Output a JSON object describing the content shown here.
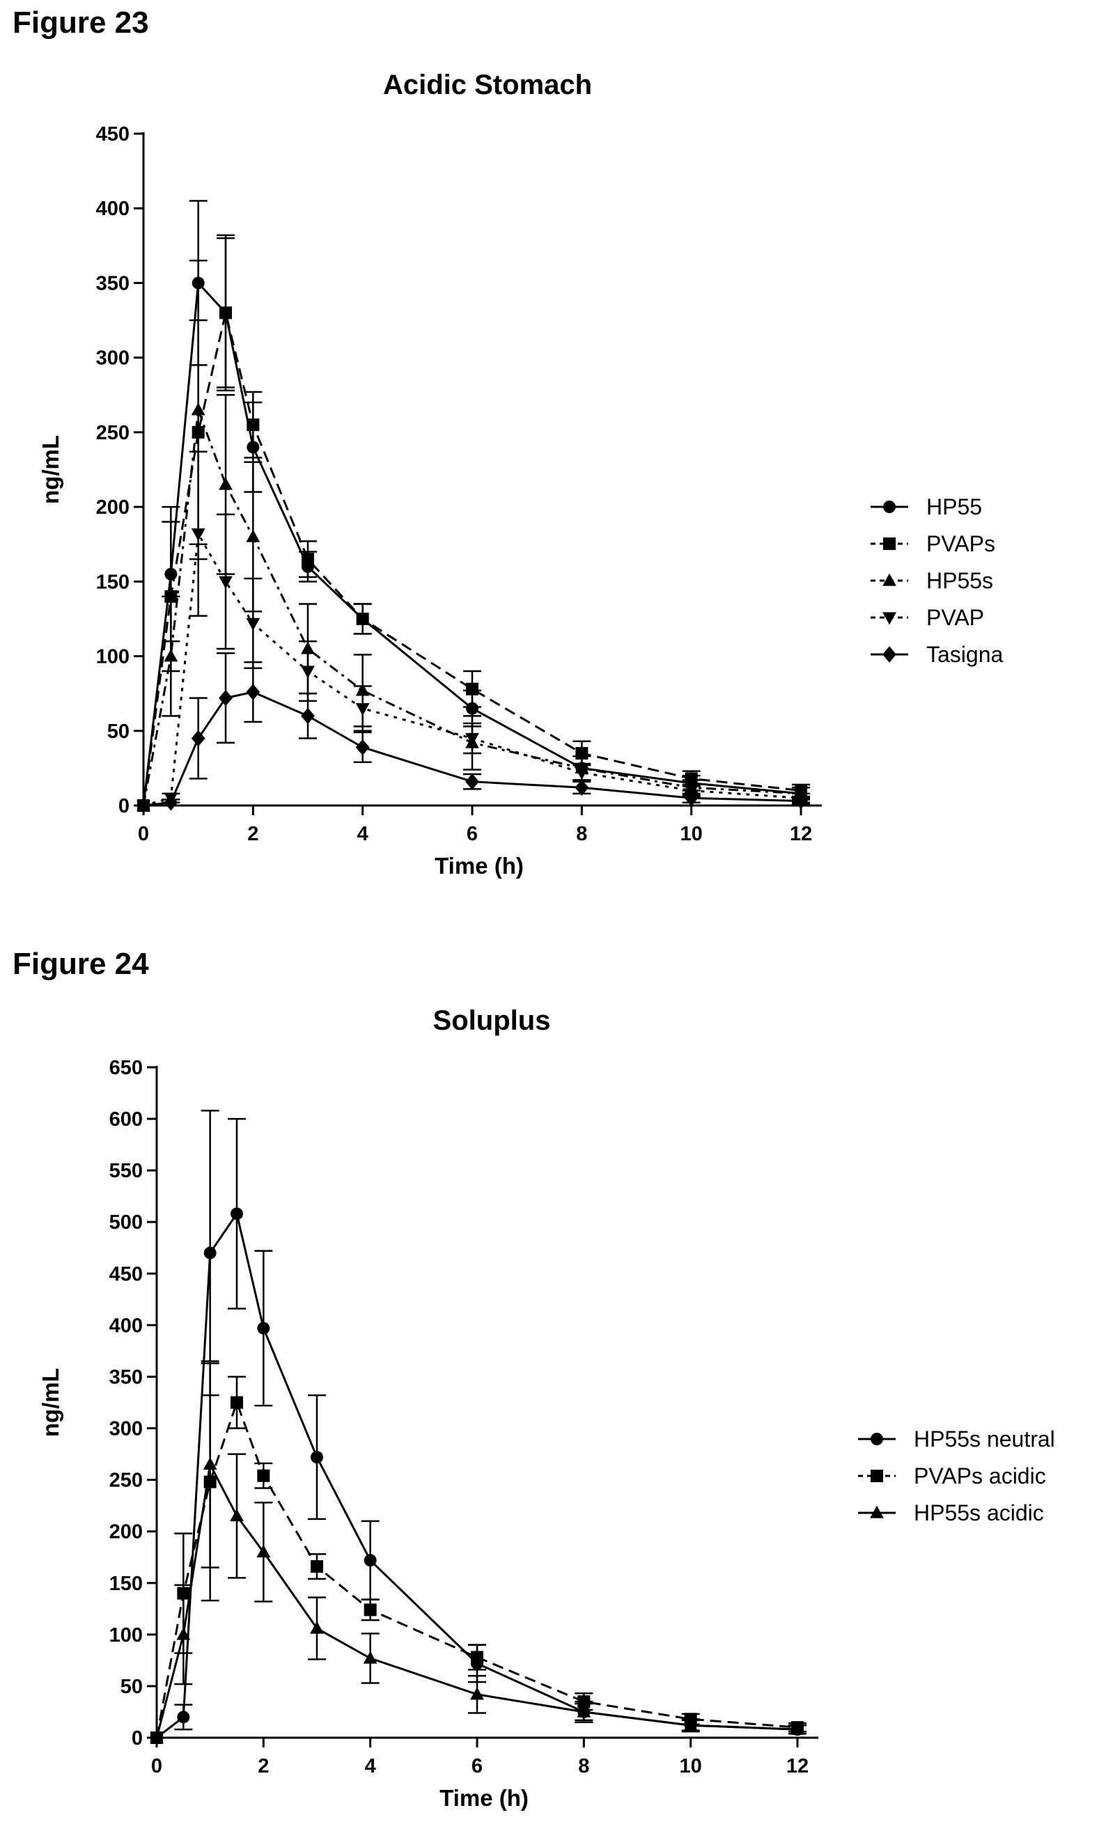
{
  "figures": [
    {
      "label": "Figure 23"
    },
    {
      "label": "Figure 24"
    }
  ],
  "chart_data": [
    {
      "type": "line",
      "title": "Acidic Stomach",
      "xlabel": "Time (h)",
      "ylabel": "ng/mL",
      "xlim": [
        0,
        12
      ],
      "ylim": [
        0,
        450
      ],
      "xticks": [
        0,
        2,
        4,
        6,
        8,
        10,
        12
      ],
      "yticks": [
        0,
        50,
        100,
        150,
        200,
        250,
        300,
        350,
        400,
        450
      ],
      "legend": "right",
      "grid": false,
      "x": [
        0,
        0.5,
        1,
        1.5,
        2,
        3,
        4,
        6,
        8,
        10,
        12
      ],
      "series": [
        {
          "name": "HP55",
          "marker": "circle",
          "dash": "solid",
          "values": [
            0,
            155,
            350,
            330,
            240,
            160,
            125,
            65,
            25,
            15,
            8
          ],
          "errors": [
            0,
            45,
            55,
            50,
            30,
            10,
            10,
            12,
            8,
            5,
            4
          ]
        },
        {
          "name": "PVAPs",
          "marker": "square",
          "dash": "dashed",
          "values": [
            0,
            140,
            250,
            330,
            255,
            165,
            125,
            78,
            35,
            18,
            10
          ],
          "errors": [
            0,
            50,
            75,
            52,
            22,
            12,
            10,
            12,
            8,
            5,
            4
          ]
        },
        {
          "name": "HP55s",
          "marker": "triangle-up",
          "dash": "dash-dot",
          "values": [
            0,
            100,
            265,
            215,
            180,
            105,
            77,
            42,
            25,
            12,
            8
          ],
          "errors": [
            0,
            40,
            100,
            60,
            50,
            30,
            24,
            18,
            8,
            5,
            4
          ]
        },
        {
          "name": "PVAP",
          "marker": "triangle-down",
          "dash": "dotted",
          "values": [
            0,
            5,
            182,
            150,
            122,
            90,
            65,
            45,
            22,
            10,
            5
          ],
          "errors": [
            0,
            3,
            55,
            45,
            30,
            20,
            15,
            10,
            6,
            4,
            3
          ]
        },
        {
          "name": "Tasigna",
          "marker": "diamond",
          "dash": "solid",
          "values": [
            0,
            2,
            45,
            72,
            76,
            60,
            39,
            16,
            12,
            5,
            3
          ],
          "errors": [
            0,
            2,
            27,
            30,
            20,
            15,
            10,
            5,
            4,
            3,
            2
          ]
        }
      ]
    },
    {
      "type": "line",
      "title": "Soluplus",
      "xlabel": "Time (h)",
      "ylabel": "ng/mL",
      "xlim": [
        0,
        12
      ],
      "ylim": [
        0,
        650
      ],
      "xticks": [
        0,
        2,
        4,
        6,
        8,
        10,
        12
      ],
      "yticks": [
        0,
        50,
        100,
        150,
        200,
        250,
        300,
        350,
        400,
        450,
        500,
        550,
        600,
        650
      ],
      "legend": "right",
      "grid": false,
      "x": [
        0,
        0.5,
        1,
        1.5,
        2,
        3,
        4,
        6,
        8,
        10,
        12
      ],
      "series": [
        {
          "name": "HP55s neutral",
          "marker": "circle",
          "dash": "solid",
          "values": [
            0,
            20,
            470,
            508,
            397,
            272,
            172,
            72,
            25,
            12,
            8
          ],
          "errors": [
            0,
            12,
            138,
            92,
            75,
            60,
            38,
            18,
            10,
            6,
            4
          ]
        },
        {
          "name": "PVAPs acidic",
          "marker": "square",
          "dash": "dashed",
          "values": [
            0,
            140,
            248,
            325,
            254,
            166,
            124,
            78,
            35,
            18,
            10
          ],
          "errors": [
            0,
            58,
            115,
            25,
            12,
            12,
            10,
            12,
            8,
            5,
            4
          ]
        },
        {
          "name": "HP55s acidic",
          "marker": "triangle-up",
          "dash": "solid",
          "values": [
            0,
            100,
            265,
            215,
            180,
            106,
            77,
            42,
            25,
            12,
            8
          ],
          "errors": [
            0,
            48,
            100,
            60,
            48,
            30,
            24,
            18,
            8,
            5,
            4
          ]
        }
      ]
    }
  ]
}
